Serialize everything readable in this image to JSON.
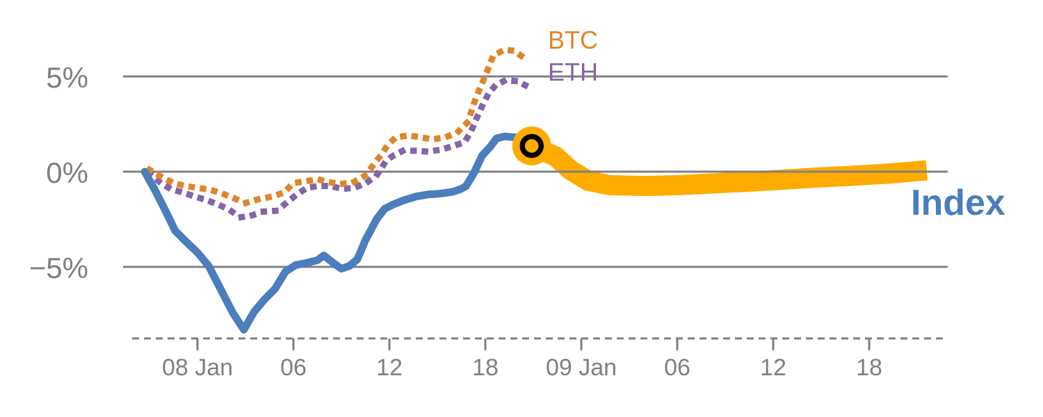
{
  "chart_data": {
    "type": "line",
    "title": "",
    "x_unit": "hours since 08 Jan 00:00",
    "x_range": [
      -4.1,
      46.9
    ],
    "x_ticks": [
      {
        "t": 0,
        "label": "08 Jan"
      },
      {
        "t": 6,
        "label": "06"
      },
      {
        "t": 12,
        "label": "12"
      },
      {
        "t": 18,
        "label": "18"
      },
      {
        "t": 24,
        "label": "09 Jan"
      },
      {
        "t": 30,
        "label": "06"
      },
      {
        "t": 36,
        "label": "12"
      },
      {
        "t": 42,
        "label": "18"
      }
    ],
    "y_unit": "percent return",
    "y_ticks": [
      {
        "v": 5,
        "label": "5%"
      },
      {
        "v": 0,
        "label": "0%"
      },
      {
        "v": -5,
        "label": "−5%"
      }
    ],
    "grid": "horizontal-only",
    "legend_position": "inline-labels",
    "series": [
      {
        "name": "Index",
        "style": "solid",
        "color": "#4a7ebc",
        "width": 11,
        "points": [
          [
            -3.3,
            0
          ],
          [
            -2.7,
            -0.9
          ],
          [
            -2.0,
            -2.05
          ],
          [
            -1.4,
            -3.1
          ],
          [
            -0.75,
            -3.65
          ],
          [
            0,
            -4.25
          ],
          [
            0.7,
            -4.95
          ],
          [
            1.5,
            -6.25
          ],
          [
            2.2,
            -7.4
          ],
          [
            2.9,
            -8.3
          ],
          [
            3.55,
            -7.35
          ],
          [
            4.2,
            -6.7
          ],
          [
            4.85,
            -6.15
          ],
          [
            5.5,
            -5.25
          ],
          [
            6.15,
            -4.9
          ],
          [
            6.8,
            -4.8
          ],
          [
            7.5,
            -4.65
          ],
          [
            7.9,
            -4.4
          ],
          [
            8.5,
            -4.8
          ],
          [
            9.0,
            -5.1
          ],
          [
            9.5,
            -4.95
          ],
          [
            10.0,
            -4.6
          ],
          [
            10.5,
            -3.6
          ],
          [
            11.2,
            -2.5
          ],
          [
            11.7,
            -1.95
          ],
          [
            12.3,
            -1.7
          ],
          [
            12.9,
            -1.5
          ],
          [
            13.7,
            -1.3
          ],
          [
            14.4,
            -1.2
          ],
          [
            15.2,
            -1.15
          ],
          [
            16.0,
            -1.05
          ],
          [
            16.5,
            -0.9
          ],
          [
            16.8,
            -0.75
          ],
          [
            17.3,
            -0.05
          ],
          [
            17.8,
            0.85
          ],
          [
            18.3,
            1.3
          ],
          [
            18.7,
            1.75
          ],
          [
            19.2,
            1.85
          ],
          [
            19.9,
            1.8
          ],
          [
            20.4,
            1.6
          ],
          [
            20.9,
            1.35
          ]
        ]
      },
      {
        "name": "BTC",
        "style": "dotted",
        "color": "#de862b",
        "width": 9,
        "points": [
          [
            -3.0,
            0.1
          ],
          [
            -2.2,
            -0.3
          ],
          [
            -1.5,
            -0.6
          ],
          [
            -0.75,
            -0.75
          ],
          [
            0,
            -0.85
          ],
          [
            0.8,
            -0.95
          ],
          [
            1.55,
            -1.15
          ],
          [
            2.3,
            -1.4
          ],
          [
            3.0,
            -1.65
          ],
          [
            3.8,
            -1.45
          ],
          [
            4.7,
            -1.3
          ],
          [
            5.4,
            -1.1
          ],
          [
            6.0,
            -0.6
          ],
          [
            6.8,
            -0.5
          ],
          [
            7.55,
            -0.4
          ],
          [
            8.2,
            -0.55
          ],
          [
            8.95,
            -0.65
          ],
          [
            9.75,
            -0.55
          ],
          [
            10.5,
            -0.2
          ],
          [
            11.0,
            0.35
          ],
          [
            11.5,
            0.9
          ],
          [
            11.9,
            1.4
          ],
          [
            12.4,
            1.8
          ],
          [
            13.2,
            1.9
          ],
          [
            14.0,
            1.8
          ],
          [
            14.7,
            1.7
          ],
          [
            15.5,
            1.8
          ],
          [
            16.3,
            2.1
          ],
          [
            16.9,
            2.6
          ],
          [
            17.4,
            3.85
          ],
          [
            18.0,
            5.05
          ],
          [
            18.5,
            6.1
          ],
          [
            19.2,
            6.4
          ],
          [
            19.8,
            6.35
          ],
          [
            20.3,
            6.05
          ]
        ]
      },
      {
        "name": "ETH",
        "style": "dotted",
        "color": "#8465a8",
        "width": 9,
        "points": [
          [
            -3.0,
            -0.1
          ],
          [
            -2.35,
            -0.55
          ],
          [
            -1.7,
            -0.9
          ],
          [
            -0.9,
            -1.1
          ],
          [
            -0.2,
            -1.3
          ],
          [
            0.6,
            -1.5
          ],
          [
            1.35,
            -1.75
          ],
          [
            2.0,
            -2.0
          ],
          [
            2.65,
            -2.4
          ],
          [
            3.4,
            -2.3
          ],
          [
            4.1,
            -2.1
          ],
          [
            4.95,
            -2.05
          ],
          [
            5.55,
            -1.65
          ],
          [
            6.2,
            -1.2
          ],
          [
            6.85,
            -0.85
          ],
          [
            7.55,
            -0.75
          ],
          [
            8.3,
            -0.75
          ],
          [
            9.05,
            -0.9
          ],
          [
            9.8,
            -0.85
          ],
          [
            10.55,
            -0.6
          ],
          [
            11.2,
            -0.2
          ],
          [
            11.7,
            0.45
          ],
          [
            12.15,
            0.8
          ],
          [
            12.85,
            1.1
          ],
          [
            13.65,
            1.1
          ],
          [
            14.4,
            1.05
          ],
          [
            15.2,
            1.15
          ],
          [
            16.0,
            1.35
          ],
          [
            16.7,
            1.55
          ],
          [
            17.1,
            2.1
          ],
          [
            17.4,
            2.7
          ],
          [
            17.8,
            3.45
          ],
          [
            18.2,
            4.1
          ],
          [
            18.6,
            4.5
          ],
          [
            19.25,
            4.8
          ],
          [
            20.0,
            4.75
          ],
          [
            20.7,
            4.45
          ]
        ]
      },
      {
        "name": "Index forecast band",
        "style": "band",
        "color": "#ffab00",
        "width": 29,
        "points": [
          [
            20.9,
            1.35
          ],
          [
            22.4,
            0.8
          ],
          [
            23.3,
            0.1
          ],
          [
            24.4,
            -0.47
          ],
          [
            25.7,
            -0.7
          ],
          [
            27.9,
            -0.75
          ],
          [
            30.0,
            -0.71
          ],
          [
            32.2,
            -0.62
          ],
          [
            34.4,
            -0.53
          ],
          [
            36.6,
            -0.42
          ],
          [
            38.7,
            -0.31
          ],
          [
            40.9,
            -0.22
          ],
          [
            43.1,
            -0.11
          ],
          [
            45.6,
            0.07
          ]
        ]
      }
    ],
    "marker": {
      "t": 20.9,
      "v": 1.35,
      "fill": "#ffab00",
      "ring_color": "#000000"
    },
    "series_labels": {
      "btc": {
        "text": "BTC",
        "color": "#de862b"
      },
      "eth": {
        "text": "ETH",
        "color": "#8465a8"
      },
      "index": {
        "text": "Index",
        "color": "#4a7ebc"
      }
    },
    "colors": {
      "grid": "#808080",
      "axis": "#7f7f7f",
      "tick_text": "#7f7f7f",
      "background": "#ffffff"
    }
  }
}
